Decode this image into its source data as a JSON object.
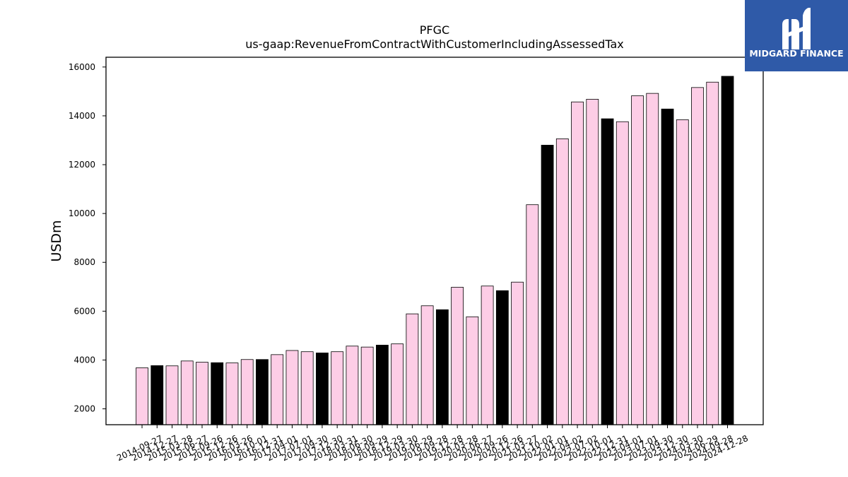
{
  "logo": {
    "text": "MIDGARD FINANCE",
    "icon": "midgard-logo-icon",
    "background": "#2f5aa8"
  },
  "colors": {
    "bar_default": "#fdcde6",
    "bar_highlight": "#000000",
    "edge": "#000000"
  },
  "chart_data": {
    "type": "bar",
    "title": "PFGC",
    "subtitle": "us-gaap:RevenueFromContractWithCustomerIncludingAssessedTax",
    "xlabel": "",
    "ylabel": "USDm",
    "ylim": [
      1350,
      16400
    ],
    "yticks": [
      2000,
      4000,
      6000,
      8000,
      10000,
      12000,
      14000,
      16000
    ],
    "grid": false,
    "categories": [
      "2014-09-27",
      "2014-12-27",
      "2015-03-28",
      "2015-06-27",
      "2015-09-26",
      "2015-12-26",
      "2016-03-26",
      "2016-10-01",
      "2016-12-31",
      "2017-04-01",
      "2017-07-01",
      "2017-09-30",
      "2017-12-30",
      "2018-03-31",
      "2018-06-30",
      "2018-09-29",
      "2018-12-29",
      "2019-03-30",
      "2019-06-29",
      "2019-09-28",
      "2019-12-28",
      "2020-03-28",
      "2020-06-27",
      "2020-09-26",
      "2020-12-26",
      "2021-03-27",
      "2021-10-02",
      "2022-01-01",
      "2022-04-02",
      "2022-07-02",
      "2022-10-01",
      "2022-12-31",
      "2023-04-01",
      "2023-07-01",
      "2023-09-30",
      "2023-12-30",
      "2024-03-30",
      "2024-06-29",
      "2024-09-28",
      "2024-12-28"
    ],
    "values": [
      3680,
      3770,
      3760,
      3960,
      3910,
      3890,
      3880,
      4020,
      4020,
      4220,
      4390,
      4340,
      4290,
      4340,
      4570,
      4530,
      4610,
      4660,
      5890,
      6220,
      6060,
      6980,
      5770,
      7030,
      6840,
      7190,
      10360,
      12800,
      13060,
      14570,
      14680,
      13880,
      13760,
      14820,
      14920,
      14280,
      13840,
      15160,
      15380,
      15620
    ],
    "highlighted": [
      false,
      true,
      false,
      false,
      false,
      true,
      false,
      false,
      true,
      false,
      false,
      false,
      true,
      false,
      false,
      false,
      true,
      false,
      false,
      false,
      true,
      false,
      false,
      false,
      true,
      false,
      false,
      true,
      false,
      false,
      false,
      true,
      false,
      false,
      false,
      true,
      false,
      false,
      false,
      true
    ]
  }
}
